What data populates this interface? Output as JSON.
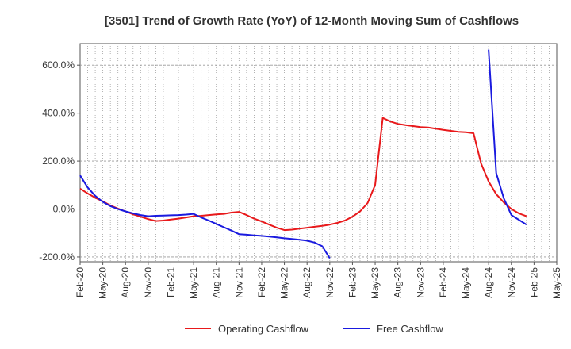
{
  "chart_data": {
    "type": "line",
    "title": "[3501]  Trend of Growth Rate (YoY) of 12-Month Moving Sum of Cashflows",
    "xlabel": "",
    "ylabel": "",
    "x_tick_labels": [
      "Feb-20",
      "May-20",
      "Aug-20",
      "Nov-20",
      "Feb-21",
      "May-21",
      "Aug-21",
      "Nov-21",
      "Feb-22",
      "May-22",
      "Aug-22",
      "Nov-22",
      "Feb-23",
      "May-23",
      "Aug-23",
      "Nov-23",
      "Feb-24",
      "May-24",
      "Aug-24",
      "Nov-24",
      "Feb-25",
      "May-25"
    ],
    "y_ticks": [
      {
        "value": 600,
        "label": "600.0%"
      },
      {
        "value": 400,
        "label": "400.0%"
      },
      {
        "value": 200,
        "label": "200.0%"
      },
      {
        "value": 0,
        "label": "0.0%"
      },
      {
        "value": -200,
        "label": "-200.0%"
      }
    ],
    "ylim": [
      -220,
      690
    ],
    "xlim": [
      "Feb-20",
      "May-25"
    ],
    "grid": true,
    "legend_position": "bottom",
    "series": [
      {
        "name": "Operating Cashflow",
        "color": "#e8191b",
        "points": [
          [
            "Feb-20",
            85
          ],
          [
            "Mar-20",
            65
          ],
          [
            "Apr-20",
            47
          ],
          [
            "May-20",
            32
          ],
          [
            "Jun-20",
            15
          ],
          [
            "Jul-20",
            2
          ],
          [
            "Aug-20",
            -10
          ],
          [
            "Sep-20",
            -22
          ],
          [
            "Oct-20",
            -32
          ],
          [
            "Nov-20",
            -42
          ],
          [
            "Dec-20",
            -50
          ],
          [
            "Jan-21",
            -48
          ],
          [
            "Feb-21",
            -44
          ],
          [
            "Mar-21",
            -40
          ],
          [
            "Apr-21",
            -35
          ],
          [
            "May-21",
            -30
          ],
          [
            "Jun-21",
            -28
          ],
          [
            "Jul-21",
            -25
          ],
          [
            "Aug-21",
            -22
          ],
          [
            "Sep-21",
            -20
          ],
          [
            "Oct-21",
            -15
          ],
          [
            "Nov-21",
            -12
          ],
          [
            "Dec-21",
            -25
          ],
          [
            "Jan-22",
            -40
          ],
          [
            "Feb-22",
            -52
          ],
          [
            "Mar-22",
            -65
          ],
          [
            "Apr-22",
            -78
          ],
          [
            "May-22",
            -88
          ],
          [
            "Jun-22",
            -86
          ],
          [
            "Jul-22",
            -82
          ],
          [
            "Aug-22",
            -78
          ],
          [
            "Sep-22",
            -74
          ],
          [
            "Oct-22",
            -70
          ],
          [
            "Nov-22",
            -65
          ],
          [
            "Dec-22",
            -58
          ],
          [
            "Jan-23",
            -48
          ],
          [
            "Feb-23",
            -32
          ],
          [
            "Mar-23",
            -10
          ],
          [
            "Apr-23",
            25
          ],
          [
            "May-23",
            100
          ],
          [
            "Jun-23",
            380
          ],
          [
            "Jul-23",
            365
          ],
          [
            "Aug-23",
            355
          ],
          [
            "Sep-23",
            350
          ],
          [
            "Oct-23",
            346
          ],
          [
            "Nov-23",
            342
          ],
          [
            "Dec-23",
            340
          ],
          [
            "Jan-24",
            335
          ],
          [
            "Feb-24",
            330
          ],
          [
            "Mar-24",
            326
          ],
          [
            "Apr-24",
            322
          ],
          [
            "May-24",
            320
          ],
          [
            "Jun-24",
            316
          ],
          [
            "Jul-24",
            190
          ],
          [
            "Aug-24",
            115
          ],
          [
            "Sep-24",
            62
          ],
          [
            "Oct-24",
            28
          ],
          [
            "Nov-24",
            0
          ],
          [
            "Dec-24",
            -18
          ],
          [
            "Jan-25",
            -30
          ]
        ]
      },
      {
        "name": "Free Cashflow",
        "color": "#1a1adf",
        "points": [
          [
            "Feb-20",
            140
          ],
          [
            "Mar-20",
            90
          ],
          [
            "Apr-20",
            55
          ],
          [
            "May-20",
            30
          ],
          [
            "Jun-20",
            12
          ],
          [
            "Jul-20",
            0
          ],
          [
            "Aug-20",
            -10
          ],
          [
            "Sep-20",
            -18
          ],
          [
            "Oct-20",
            -25
          ],
          [
            "Nov-20",
            -30
          ],
          [
            "Dec-20",
            -28
          ],
          [
            "Jan-21",
            -27
          ],
          [
            "Feb-21",
            -26
          ],
          [
            "Mar-21",
            -25
          ],
          [
            "Apr-21",
            -23
          ],
          [
            "May-21",
            -20
          ],
          [
            "Jun-21",
            -35
          ],
          [
            "Jul-21",
            -48
          ],
          [
            "Aug-21",
            -62
          ],
          [
            "Sep-21",
            -76
          ],
          [
            "Oct-21",
            -90
          ],
          [
            "Nov-21",
            -105
          ],
          [
            "Dec-21",
            -107
          ],
          [
            "Jan-22",
            -110
          ],
          [
            "Feb-22",
            -112
          ],
          [
            "Mar-22",
            -115
          ],
          [
            "Apr-22",
            -118
          ],
          [
            "May-22",
            -122
          ],
          [
            "Jun-22",
            -125
          ],
          [
            "Jul-22",
            -128
          ],
          [
            "Aug-22",
            -132
          ],
          [
            "Sep-22",
            -140
          ],
          [
            "Oct-22",
            -155
          ],
          [
            "Nov-22",
            -205
          ],
          null,
          [
            "Aug-24",
            665
          ],
          [
            "Sep-24",
            150
          ],
          [
            "Oct-24",
            45
          ],
          [
            "Nov-24",
            -25
          ],
          [
            "Dec-24",
            -45
          ],
          [
            "Jan-25",
            -65
          ]
        ]
      }
    ]
  }
}
